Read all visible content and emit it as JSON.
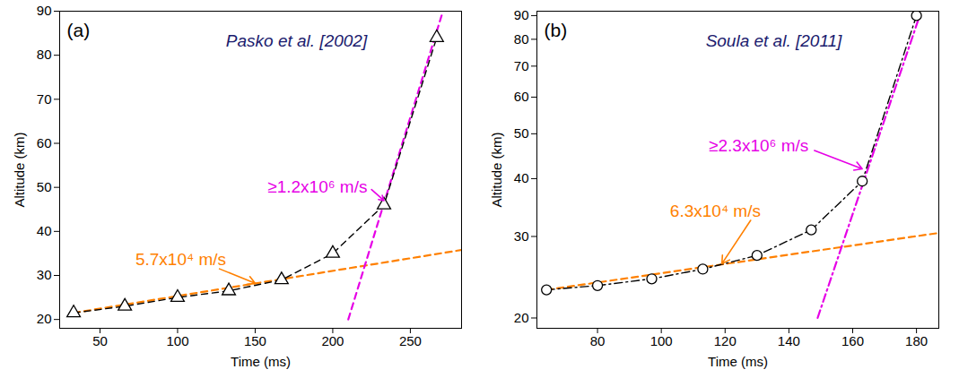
{
  "chart_data": [
    {
      "type": "line",
      "panel_label": "(a)",
      "title": "Pasko et al. [2002]",
      "x_label": "Time (ms)",
      "y_label": "Altitude (km)",
      "xlim": [
        24,
        283
      ],
      "xticks": [
        50,
        100,
        150,
        200,
        250
      ],
      "ylim": [
        18,
        90
      ],
      "yticks": [
        20,
        30,
        40,
        50,
        60,
        70,
        80,
        90
      ],
      "grid": false,
      "series": [
        {
          "color": "#ff8000",
          "line_style": "dashed",
          "x": [
            33,
            285
          ],
          "values": [
            21.5,
            35.9
          ],
          "annotation": {
            "text": "5.7x10⁴ m/s",
            "x": 133,
            "y": 33.5,
            "arrow": [
              127,
              31.5,
              150,
              28.2
            ]
          }
        },
        {
          "color": "#e600e6",
          "line_style": "dashed",
          "x": [
            210,
            271
          ],
          "values": [
            20,
            90
          ],
          "annotation": {
            "text": "≥1.2x10⁶ m/s",
            "x": 224,
            "y": 50,
            "arrow": [
              225,
              49.5,
              233,
              47
            ]
          }
        },
        {
          "color": "#000000",
          "line_style": "dashed",
          "marker": "triangle",
          "x": [
            33,
            66,
            100,
            133,
            167,
            200,
            233,
            267
          ],
          "values": [
            21.5,
            23,
            25,
            26.5,
            29,
            35,
            46,
            84
          ]
        }
      ]
    },
    {
      "type": "line",
      "panel_label": "(b)",
      "title": "Soula et al. [2011]",
      "x_label": "Time (ms)",
      "y_label": "Altitude (km)",
      "xlim": [
        61,
        187
      ],
      "xticks": [
        80,
        100,
        120,
        140,
        160,
        180
      ],
      "ylim": [
        19,
        92
      ],
      "yticks": [
        20,
        30,
        40,
        50,
        60,
        70,
        80,
        90
      ],
      "log": "y",
      "grid": false,
      "series": [
        {
          "color": "#ff8000",
          "line_style": "dashed",
          "x": [
            64,
            188
          ],
          "values": [
            23,
            30.6
          ],
          "annotation": {
            "text": "6.3x10⁴ m/s",
            "x": 132,
            "y": 34,
            "arrow": [
              128,
              32.5,
              119,
              26.2
            ]
          }
        },
        {
          "color": "#e600e6",
          "line_style": "dashdot",
          "x": [
            149,
            181
          ],
          "values": [
            20,
            90
          ],
          "annotation": {
            "text": "≥2.3x10⁶ m/s",
            "x": 147,
            "y": 47,
            "arrow": [
              148,
              46,
              163,
              42
            ]
          }
        },
        {
          "color": "#000000",
          "line_style": "dashdot",
          "marker": "circle",
          "x": [
            64,
            80,
            97,
            113,
            130,
            147,
            163,
            180
          ],
          "values": [
            23,
            23.5,
            24.3,
            25.5,
            27.3,
            31,
            39.5,
            90
          ]
        }
      ]
    }
  ]
}
